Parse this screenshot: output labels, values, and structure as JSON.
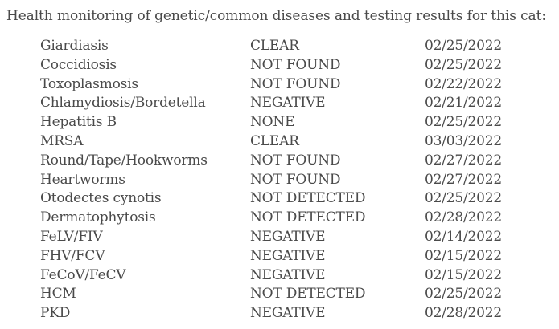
{
  "heading": "Health monitoring of genetic/common diseases and testing results for this cat:",
  "rows": [
    {
      "disease": "Giardiasis",
      "result": "CLEAR",
      "date": "02/25/2022"
    },
    {
      "disease": "Coccidiosis",
      "result": "NOT FOUND",
      "date": "02/25/2022"
    },
    {
      "disease": "Toxoplasmosis",
      "result": "NOT FOUND",
      "date": "02/22/2022"
    },
    {
      "disease": "Chlamydiosis/Bordetella",
      "result": "NEGATIVE",
      "date": "02/21/2022"
    },
    {
      "disease": "Hepatitis B",
      "result": "NONE",
      "date": "02/25/2022"
    },
    {
      "disease": "MRSA",
      "result": "CLEAR",
      "date": "03/03/2022"
    },
    {
      "disease": "Round/Tape/Hookworms",
      "result": "NOT FOUND",
      "date": "02/27/2022"
    },
    {
      "disease": "Heartworms",
      "result": "NOT FOUND",
      "date": "02/27/2022"
    },
    {
      "disease": "Otodectes cynotis",
      "result": "NOT DETECTED",
      "date": "02/25/2022"
    },
    {
      "disease": "Dermatophytosis",
      "result": "NOT DETECTED",
      "date": "02/28/2022"
    },
    {
      "disease": "FeLV/FIV",
      "result": "NEGATIVE",
      "date": "02/14/2022"
    },
    {
      "disease": "FHV/FCV",
      "result": "NEGATIVE",
      "date": "02/15/2022"
    },
    {
      "disease": "FeCoV/FeCV",
      "result": "NEGATIVE",
      "date": "02/15/2022"
    },
    {
      "disease": "HCM",
      "result": "NOT DETECTED",
      "date": "02/25/2022"
    },
    {
      "disease": "PKD",
      "result": "NEGATIVE",
      "date": "02/28/2022"
    }
  ]
}
